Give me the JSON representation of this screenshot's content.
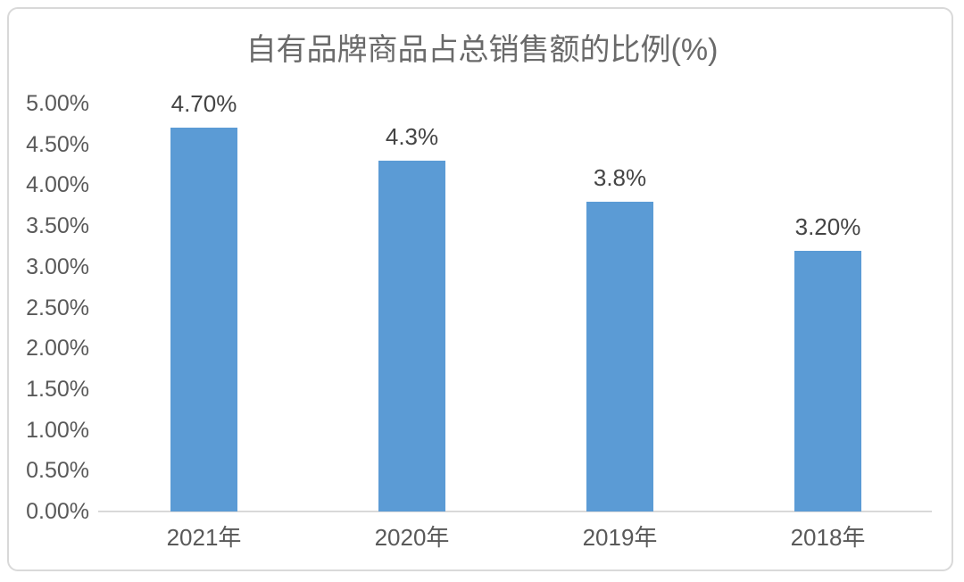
{
  "chart": {
    "title": "自有品牌商品占总销售额的比例(%)",
    "title_color": "#6a6a6a"
  },
  "chart_data": {
    "type": "bar",
    "title": "自有品牌商品占总销售额的比例(%)",
    "categories": [
      "2021年",
      "2020年",
      "2019年",
      "2018年"
    ],
    "values": [
      4.7,
      4.3,
      3.8,
      3.2
    ],
    "data_labels": [
      "4.70%",
      "4.3%",
      "3.8%",
      "3.20%"
    ],
    "y_ticks": [
      "5.00%",
      "4.50%",
      "4.00%",
      "3.50%",
      "3.00%",
      "2.50%",
      "2.00%",
      "1.50%",
      "1.00%",
      "0.50%",
      "0.00%"
    ],
    "ylim": [
      0,
      5
    ],
    "xlabel": "",
    "ylabel": "",
    "grid": false,
    "legend": false,
    "bar_color": "#5b9bd5",
    "axis_line_color": "#d9d9d9",
    "tick_color": "#595959",
    "data_label_color": "#444444"
  }
}
